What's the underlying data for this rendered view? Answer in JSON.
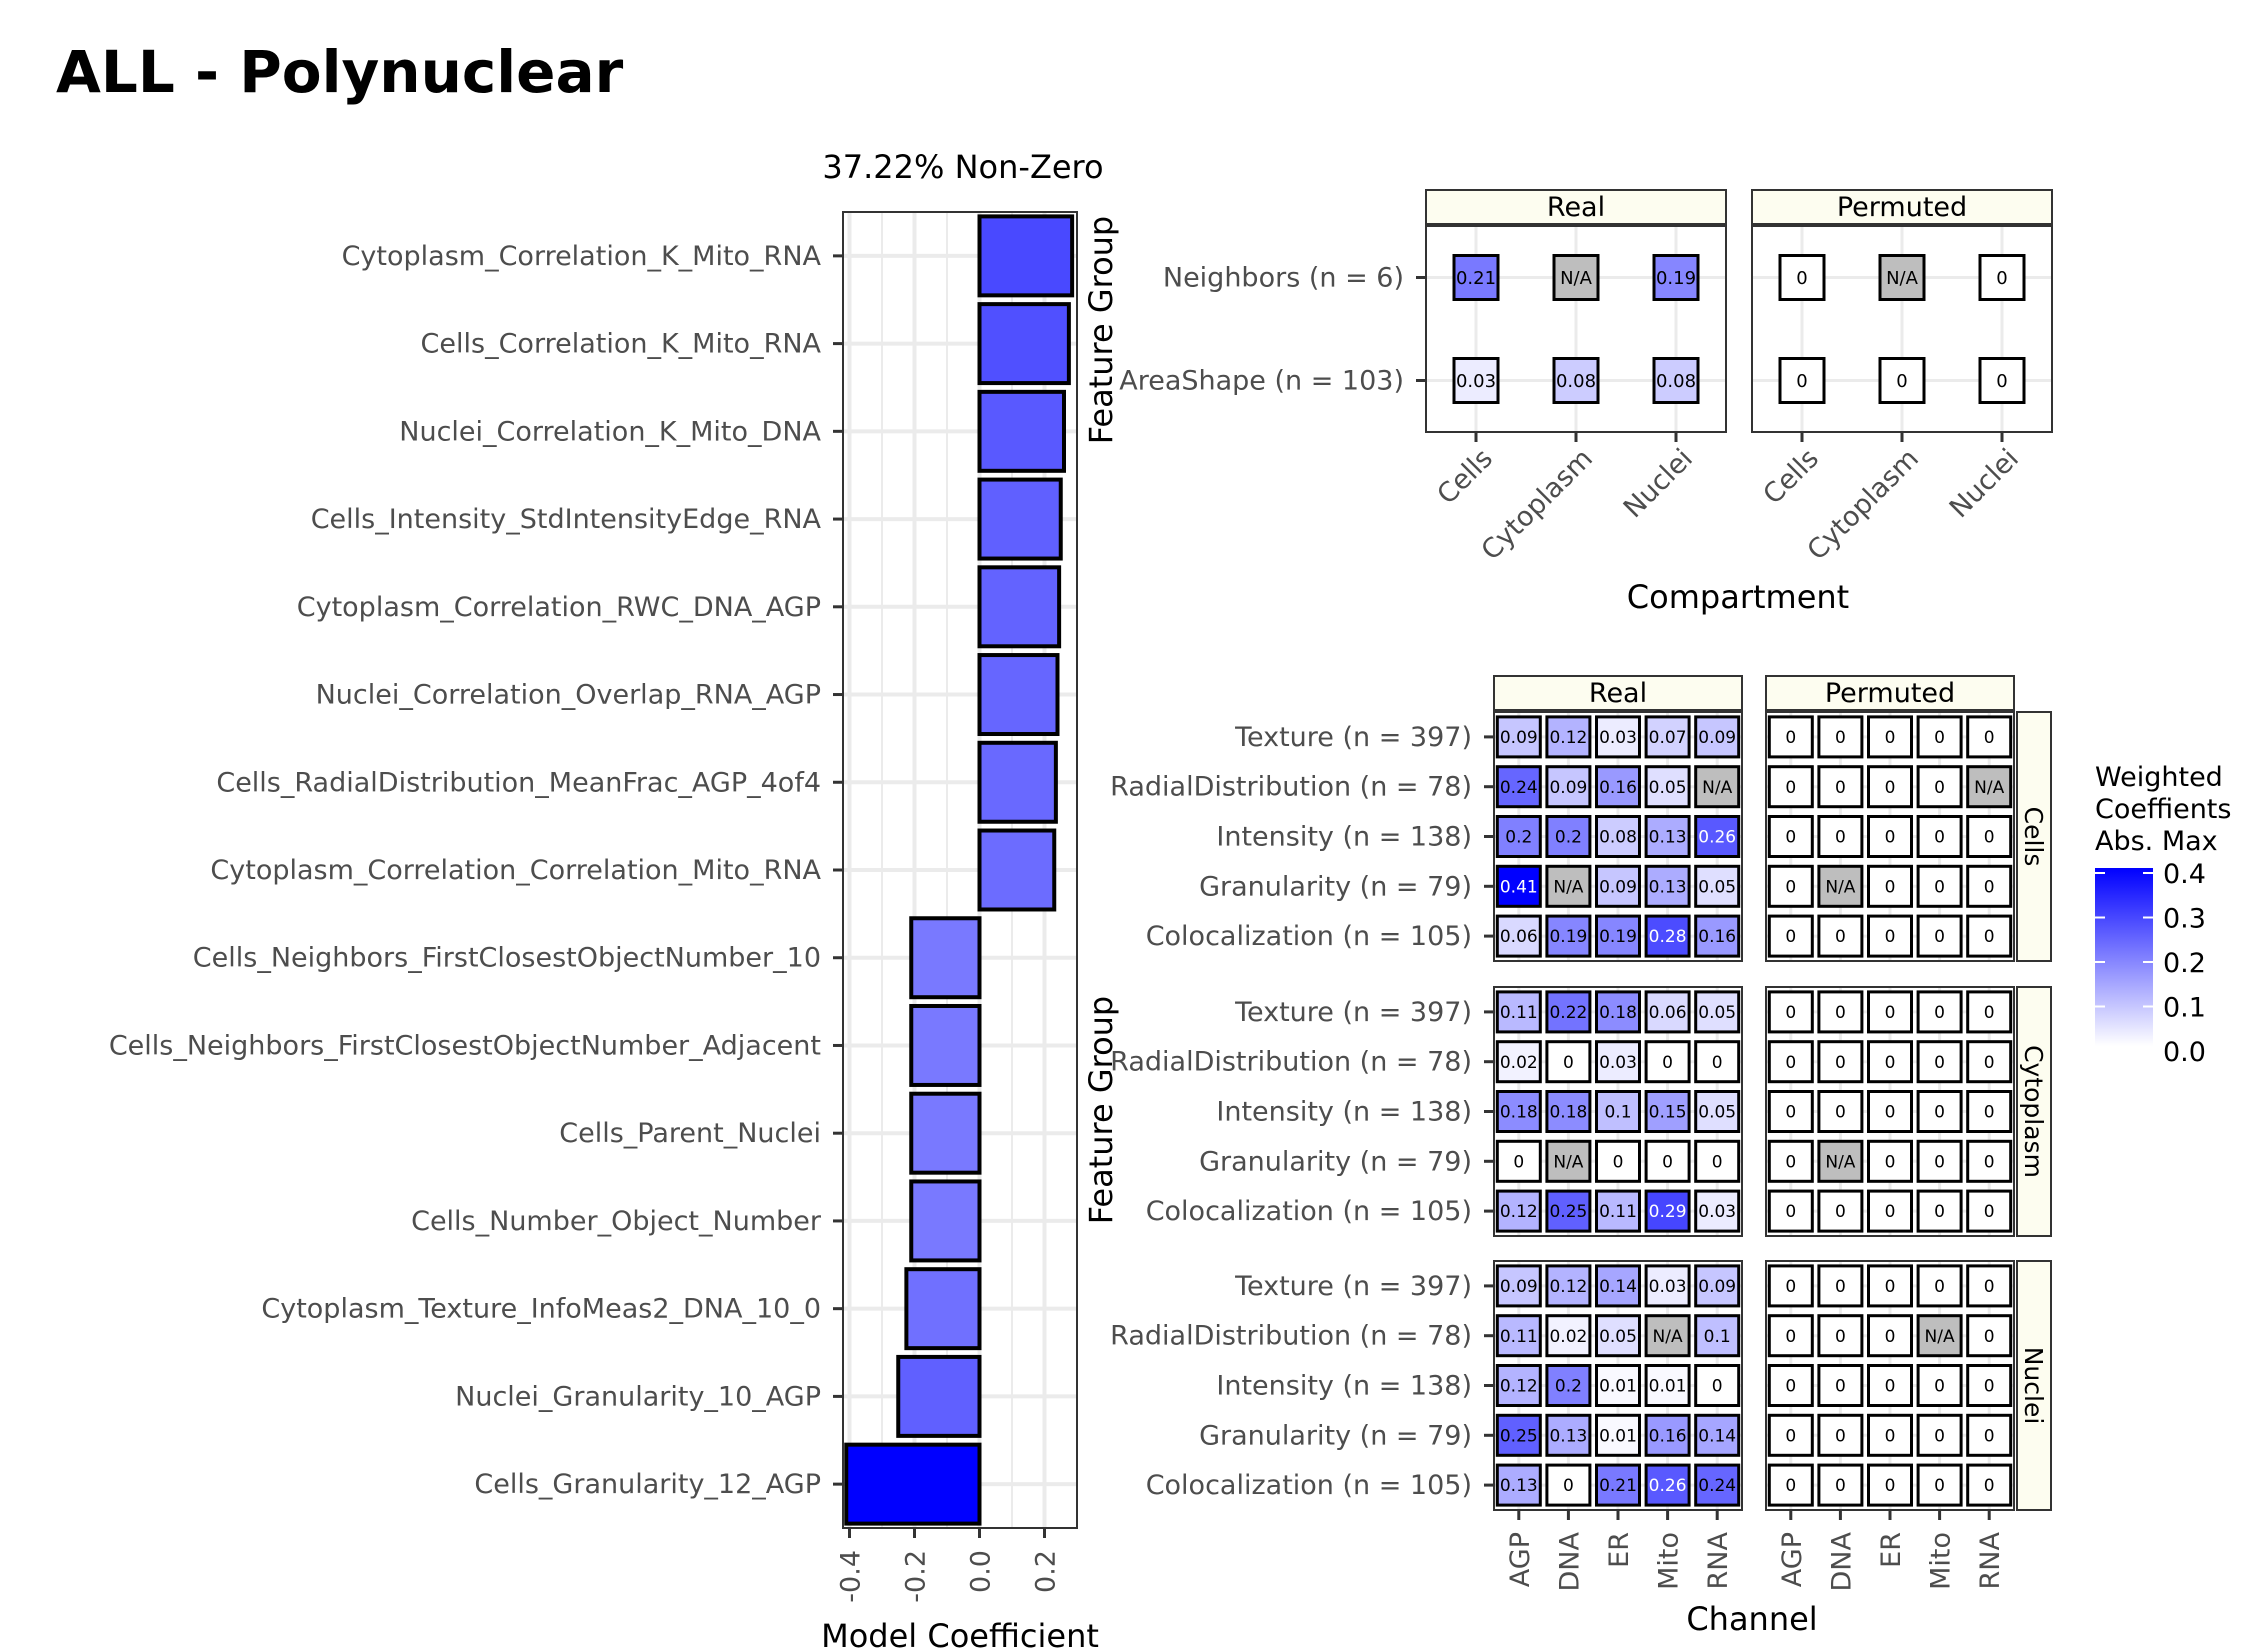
{
  "title": "ALL - Polynuclear",
  "colors": {
    "scale_low": "#ffffff",
    "scale_high": "#0000ff",
    "na_fill": "#bebebe",
    "strip_fill": "#fdfdf0",
    "grid": "#ebebeb"
  },
  "chart_data": [
    {
      "type": "bar",
      "orientation": "horizontal",
      "title": "37.22% Non-Zero",
      "xlabel": "Model Coefficient",
      "xlim": [
        -0.42,
        0.3
      ],
      "xticks": [
        -0.4,
        -0.2,
        0.0,
        0.2
      ],
      "xtick_labels": [
        "-0.4",
        "-0.2",
        "0.0",
        "0.2"
      ],
      "grid": true,
      "categories": [
        "Cytoplasm_Correlation_K_Mito_RNA",
        "Cells_Correlation_K_Mito_RNA",
        "Nuclei_Correlation_K_Mito_DNA",
        "Cells_Intensity_StdIntensityEdge_RNA",
        "Cytoplasm_Correlation_RWC_DNA_AGP",
        "Nuclei_Correlation_Overlap_RNA_AGP",
        "Cells_RadialDistribution_MeanFrac_AGP_4of4",
        "Cytoplasm_Correlation_Correlation_Mito_RNA",
        "Cells_Neighbors_FirstClosestObjectNumber_10",
        "Cells_Neighbors_FirstClosestObjectNumber_Adjacent",
        "Cells_Parent_Nuclei",
        "Cells_Number_Object_Number",
        "Cytoplasm_Texture_InfoMeas2_DNA_10_0",
        "Nuclei_Granularity_10_AGP",
        "Cells_Granularity_12_AGP"
      ],
      "values": [
        0.285,
        0.275,
        0.26,
        0.25,
        0.245,
        0.24,
        0.235,
        0.23,
        -0.21,
        -0.21,
        -0.21,
        -0.21,
        -0.225,
        -0.25,
        -0.41
      ]
    },
    {
      "type": "heatmap",
      "title": "",
      "xlabel": "Compartment",
      "ylabel": "Feature Group",
      "panels": [
        "Real",
        "Permuted"
      ],
      "x": [
        "Cells",
        "Cytoplasm",
        "Nuclei"
      ],
      "y": [
        "Neighbors (n = 6)",
        "AreaShape (n = 103)"
      ],
      "values": {
        "Real": [
          [
            "0.21",
            "N/A",
            "0.19"
          ],
          [
            "0.03",
            "0.08",
            "0.08"
          ]
        ],
        "Permuted": [
          [
            "0",
            "N/A",
            "0"
          ],
          [
            "0",
            "0",
            "0"
          ]
        ]
      }
    },
    {
      "type": "heatmap",
      "title": "",
      "xlabel": "Channel",
      "ylabel": "Feature Group",
      "panels": [
        "Real",
        "Permuted"
      ],
      "x": [
        "AGP",
        "DNA",
        "ER",
        "Mito",
        "RNA"
      ],
      "y": [
        "Texture (n = 397)",
        "RadialDistribution (n = 78)",
        "Intensity (n = 138)",
        "Granularity (n = 79)",
        "Colocalization (n = 105)"
      ],
      "facets": [
        {
          "name": "Cells",
          "Real": [
            [
              "0.09",
              "0.12",
              "0.03",
              "0.07",
              "0.09"
            ],
            [
              "0.24",
              "0.09",
              "0.16",
              "0.05",
              "N/A"
            ],
            [
              "0.2",
              "0.2",
              "0.08",
              "0.13",
              "0.26"
            ],
            [
              "0.41",
              "N/A",
              "0.09",
              "0.13",
              "0.05"
            ],
            [
              "0.06",
              "0.19",
              "0.19",
              "0.28",
              "0.16"
            ]
          ],
          "Permuted": [
            [
              "0",
              "0",
              "0",
              "0",
              "0"
            ],
            [
              "0",
              "0",
              "0",
              "0",
              "N/A"
            ],
            [
              "0",
              "0",
              "0",
              "0",
              "0"
            ],
            [
              "0",
              "N/A",
              "0",
              "0",
              "0"
            ],
            [
              "0",
              "0",
              "0",
              "0",
              "0"
            ]
          ]
        },
        {
          "name": "Cytoplasm",
          "Real": [
            [
              "0.11",
              "0.22",
              "0.18",
              "0.06",
              "0.05"
            ],
            [
              "0.02",
              "0",
              "0.03",
              "0",
              "0"
            ],
            [
              "0.18",
              "0.18",
              "0.1",
              "0.15",
              "0.05"
            ],
            [
              "0",
              "N/A",
              "0",
              "0",
              "0"
            ],
            [
              "0.12",
              "0.25",
              "0.11",
              "0.29",
              "0.03"
            ]
          ],
          "Permuted": [
            [
              "0",
              "0",
              "0",
              "0",
              "0"
            ],
            [
              "0",
              "0",
              "0",
              "0",
              "0"
            ],
            [
              "0",
              "0",
              "0",
              "0",
              "0"
            ],
            [
              "0",
              "N/A",
              "0",
              "0",
              "0"
            ],
            [
              "0",
              "0",
              "0",
              "0",
              "0"
            ]
          ]
        },
        {
          "name": "Nuclei",
          "Real": [
            [
              "0.09",
              "0.12",
              "0.14",
              "0.03",
              "0.09"
            ],
            [
              "0.11",
              "0.02",
              "0.05",
              "N/A",
              "0.1"
            ],
            [
              "0.12",
              "0.2",
              "0.01",
              "0.01",
              "0"
            ],
            [
              "0.25",
              "0.13",
              "0.01",
              "0.16",
              "0.14"
            ],
            [
              "0.13",
              "0",
              "0.21",
              "0.26",
              "0.24"
            ]
          ],
          "Permuted": [
            [
              "0",
              "0",
              "0",
              "0",
              "0"
            ],
            [
              "0",
              "0",
              "0",
              "N/A",
              "0"
            ],
            [
              "0",
              "0",
              "0",
              "0",
              "0"
            ],
            [
              "0",
              "0",
              "0",
              "0",
              "0"
            ],
            [
              "0",
              "0",
              "0",
              "0",
              "0"
            ]
          ]
        }
      ]
    }
  ],
  "legend": {
    "title_lines": [
      "Weighted",
      "Coeffients",
      "Abs. Max"
    ],
    "ticks": [
      "0.4",
      "0.3",
      "0.2",
      "0.1",
      "0.0"
    ],
    "max": 0.4
  }
}
